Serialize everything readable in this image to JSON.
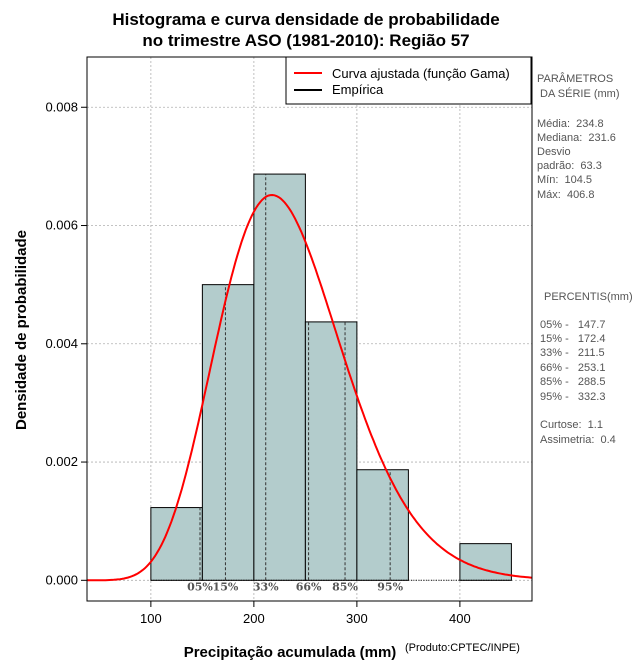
{
  "chart_data": {
    "type": "histogram",
    "title_line1": "Histograma e curva densidade de probabilidade",
    "title_line2": "no trimestre ASO (1981-2010): Região 57",
    "xlabel": "Precipitação acumulada (mm)",
    "ylabel": "Densidade de probabilidade",
    "credit": "(Produto:CPTEC/INPE)",
    "xlim": [
      38,
      470
    ],
    "ylim": [
      -0.00035,
      0.00885
    ],
    "x_ticks": [
      100,
      200,
      300,
      400
    ],
    "y_ticks": [
      0.0,
      0.002,
      0.004,
      0.006,
      0.008
    ],
    "y_tick_labels": [
      "0.000",
      "0.002",
      "0.004",
      "0.006",
      "0.008"
    ],
    "grid": true,
    "bins": [
      {
        "start": 100,
        "end": 150,
        "density": 0.00123
      },
      {
        "start": 150,
        "end": 200,
        "density": 0.005
      },
      {
        "start": 200,
        "end": 250,
        "density": 0.00687
      },
      {
        "start": 250,
        "end": 300,
        "density": 0.00437
      },
      {
        "start": 300,
        "end": 350,
        "density": 0.00187
      },
      {
        "start": 350,
        "end": 400,
        "density": 0.0
      },
      {
        "start": 400,
        "end": 450,
        "density": 0.00062
      }
    ],
    "gamma_fit": {
      "shape": 13.8,
      "scale": 17.0
    },
    "percentile_lines": [
      {
        "label": "05%",
        "value": 147.7
      },
      {
        "label": "15%",
        "value": 172.4
      },
      {
        "label": "33%",
        "value": 211.5
      },
      {
        "label": "66%",
        "value": 253.1
      },
      {
        "label": "85%",
        "value": 288.5
      },
      {
        "label": "95%",
        "value": 332.3
      }
    ],
    "legend": {
      "position": "top-right",
      "entries": [
        {
          "label": "Curva ajustada (função Gama)",
          "color": "#ff0000"
        },
        {
          "label": "Empírica",
          "color": "#000000"
        }
      ]
    },
    "colors": {
      "bar_fill": "#b3cccc",
      "curve": "#ff0000",
      "grid": "#b0b0b0"
    }
  },
  "sidebar": {
    "params_title_1": "PARÂMETROS",
    "params_title_2": " DA SÉRIE (mm)",
    "stats": [
      "Média:  234.8",
      "Mediana:  231.6",
      "Desvio",
      "padrão:  63.3",
      "Mín:  104.5",
      "Máx:  406.8"
    ],
    "percentis_title": "PERCENTIS(mm)",
    "percentis": [
      "05% -   147.7",
      "15% -   172.4",
      "33% -   211.5",
      "66% -   253.1",
      "85% -   288.5",
      "95% -   332.3"
    ],
    "shape_stats": [
      "Curtose:  1.1",
      "Assimetria:  0.4"
    ]
  }
}
